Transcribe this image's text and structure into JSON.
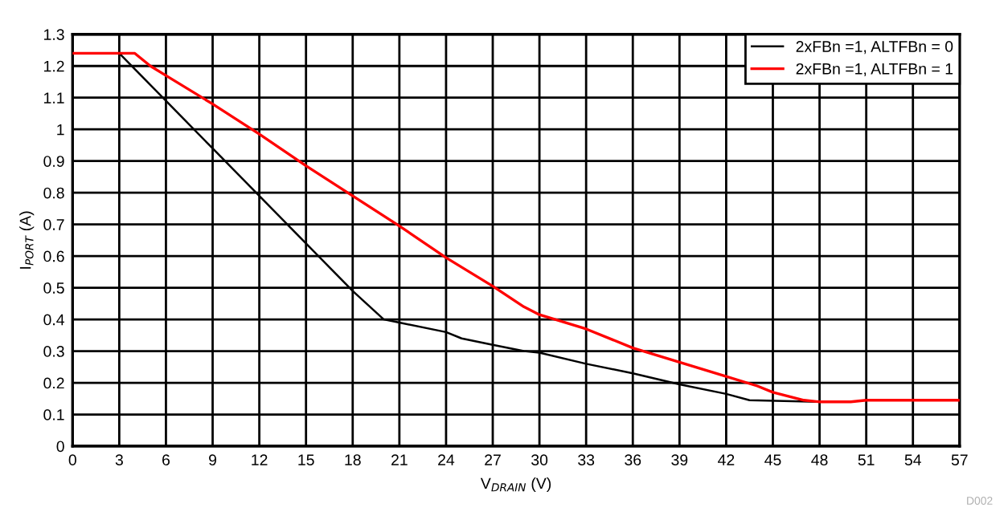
{
  "chart_data": {
    "type": "line",
    "xlabel": "V$_{DRAIN}$ (V)",
    "ylabel": "I$_{PORT}$ (A)",
    "xlim": [
      0,
      57
    ],
    "ylim": [
      0,
      1.3
    ],
    "xticks": [
      0,
      3,
      6,
      9,
      12,
      15,
      18,
      21,
      24,
      27,
      30,
      33,
      36,
      39,
      42,
      45,
      48,
      51,
      54,
      57
    ],
    "yticks": [
      0,
      0.1,
      0.2,
      0.3,
      0.4,
      0.5,
      0.6,
      0.7,
      0.8,
      0.9,
      1,
      1.1,
      1.2,
      1.3
    ],
    "grid": true,
    "legend": "top right",
    "marker": "none",
    "line_style": "solid",
    "annotations": [
      "D002"
    ],
    "series": [
      {
        "name": "2xFBn =1, ALTFBn = 0",
        "color": "#000000",
        "x": [
          0,
          3,
          4,
          6,
          9,
          12,
          15,
          18,
          20,
          21,
          24,
          25,
          27,
          29,
          30,
          33,
          36,
          39,
          42,
          43.5,
          48,
          50,
          51,
          57
        ],
        "values": [
          1.24,
          1.24,
          1.19,
          1.09,
          0.94,
          0.79,
          0.64,
          0.49,
          0.4,
          0.39,
          0.36,
          0.34,
          0.32,
          0.3,
          0.295,
          0.26,
          0.23,
          0.195,
          0.165,
          0.145,
          0.14,
          null,
          0.145,
          0.145
        ]
      },
      {
        "name": "2xFBn =1, ALTFBn = 1",
        "color": "#ff0000",
        "x": [
          0,
          4,
          5,
          6,
          9,
          12,
          15,
          18,
          21,
          24,
          27,
          29,
          30,
          33,
          36,
          39,
          42,
          44,
          45,
          47,
          48,
          50,
          51,
          57
        ],
        "values": [
          1.24,
          1.24,
          1.2,
          1.17,
          1.08,
          0.985,
          0.885,
          0.79,
          0.695,
          0.595,
          0.505,
          0.44,
          0.415,
          0.37,
          0.31,
          0.265,
          0.22,
          0.19,
          0.17,
          0.145,
          0.14,
          0.14,
          0.145,
          0.145
        ]
      }
    ]
  }
}
